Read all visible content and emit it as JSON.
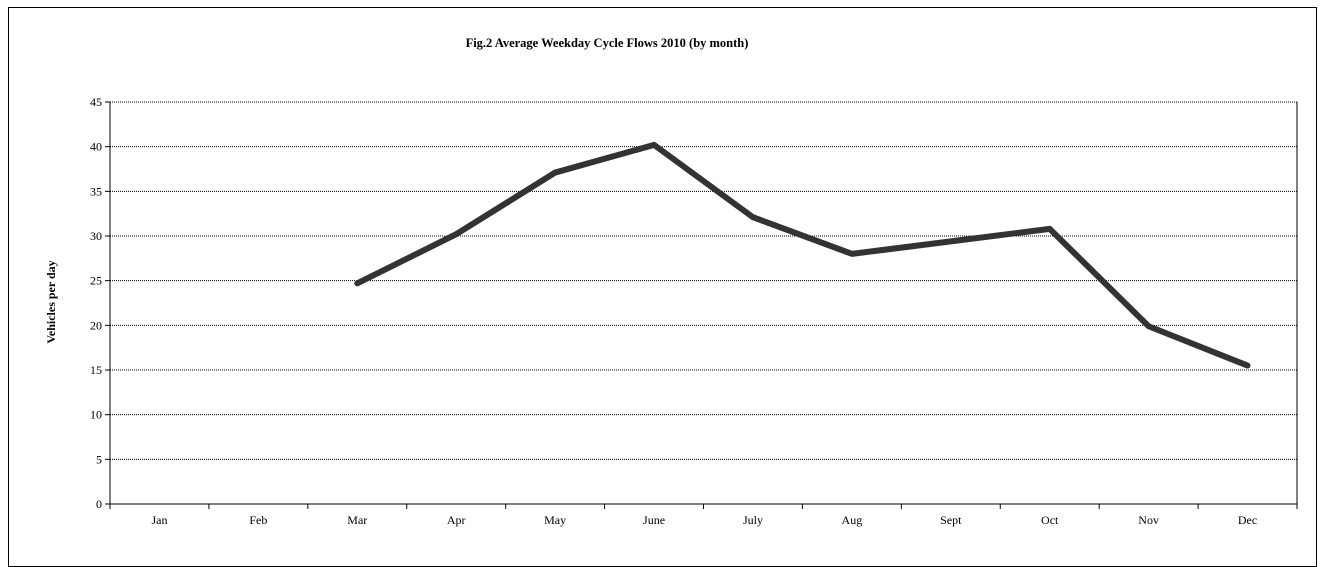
{
  "chart_data": {
    "type": "line",
    "title": "Fig.2 Average Weekday Cycle Flows 2010 (by month)",
    "xlabel": "",
    "ylabel": "Vehicles per day",
    "categories": [
      "Jan",
      "Feb",
      "Mar",
      "Apr",
      "May",
      "June",
      "July",
      "Aug",
      "Sept",
      "Oct",
      "Nov",
      "Dec"
    ],
    "series": [
      {
        "values": [
          null,
          null,
          24.7,
          30.2,
          37.1,
          40.2,
          32.1,
          28.0,
          29.4,
          30.8,
          19.9,
          15.5
        ],
        "color": "#333333"
      }
    ],
    "ylim": [
      0,
      45
    ],
    "yticks": [
      0,
      5,
      10,
      15,
      20,
      25,
      30,
      35,
      40,
      45
    ],
    "grid": true,
    "legend": "none"
  }
}
